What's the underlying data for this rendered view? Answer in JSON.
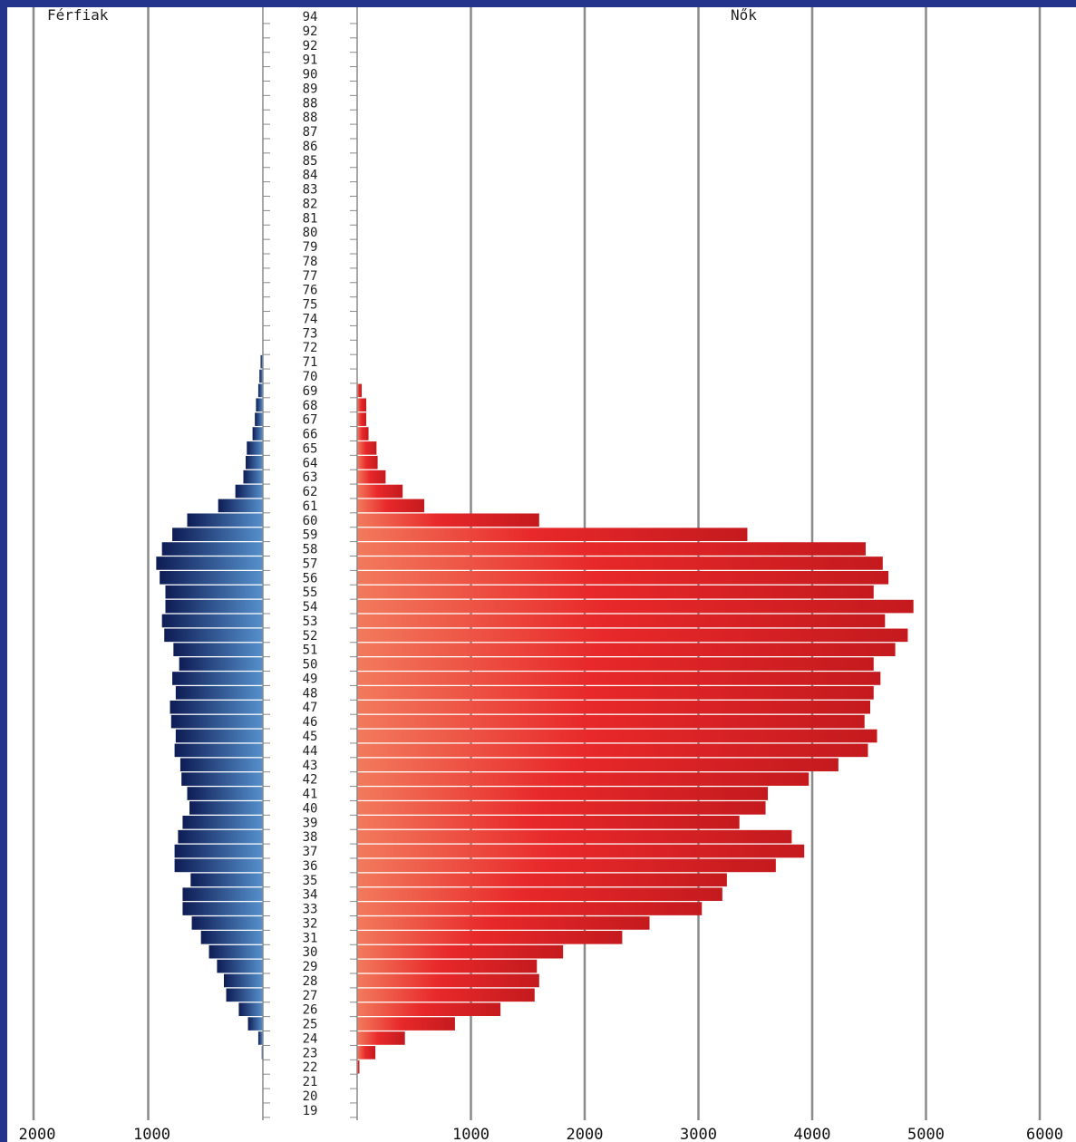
{
  "slide": {
    "background_color": "#24348c",
    "panel_color": "#ffffff"
  },
  "chart_data": {
    "type": "bar",
    "orientation": "horizontal",
    "subtype": "population-pyramid",
    "title": "",
    "panel_labels": {
      "left": "Férfiak",
      "right": "Nők"
    },
    "xlabel": "",
    "ylabel": "",
    "grid": true,
    "left_axis": {
      "xlim": [
        0,
        2000
      ],
      "ticks": [
        2000,
        1000
      ],
      "tick_labels": [
        "2000",
        "1000"
      ],
      "reversed": true
    },
    "right_axis": {
      "xlim": [
        0,
        6000
      ],
      "ticks": [
        1000,
        2000,
        3000,
        4000,
        5000,
        6000
      ],
      "tick_labels": [
        "1000",
        "2000",
        "3000",
        "4000",
        "5000",
        "6000"
      ]
    },
    "categories": [
      "94",
      "92",
      "92",
      "91",
      "90",
      "89",
      "88",
      "88",
      "87",
      "86",
      "85",
      "84",
      "83",
      "82",
      "81",
      "80",
      "79",
      "78",
      "77",
      "76",
      "75",
      "74",
      "73",
      "72",
      "71",
      "70",
      "69",
      "68",
      "67",
      "66",
      "65",
      "64",
      "63",
      "62",
      "61",
      "60",
      "59",
      "58",
      "57",
      "56",
      "55",
      "54",
      "53",
      "52",
      "51",
      "50",
      "49",
      "48",
      "47",
      "46",
      "45",
      "44",
      "43",
      "42",
      "41",
      "40",
      "39",
      "38",
      "37",
      "36",
      "35",
      "34",
      "33",
      "32",
      "31",
      "30",
      "29",
      "28",
      "27",
      "26",
      "25",
      "24",
      "23",
      "22",
      "21",
      "20",
      "19"
    ],
    "series": [
      {
        "name": "Férfiak",
        "color_dark": "#0e1c55",
        "color_light": "#5590cc",
        "values": [
          0,
          0,
          0,
          0,
          0,
          0,
          0,
          0,
          0,
          0,
          0,
          0,
          0,
          0,
          0,
          0,
          0,
          0,
          0,
          0,
          0,
          0,
          0,
          0,
          20,
          30,
          40,
          60,
          70,
          90,
          140,
          150,
          170,
          240,
          390,
          660,
          790,
          880,
          930,
          900,
          850,
          850,
          880,
          860,
          780,
          730,
          790,
          760,
          810,
          800,
          760,
          770,
          720,
          710,
          660,
          640,
          700,
          740,
          770,
          770,
          630,
          700,
          700,
          620,
          540,
          470,
          400,
          340,
          320,
          210,
          130,
          40,
          10,
          0,
          0,
          0,
          0
        ]
      },
      {
        "name": "Nők",
        "color_dark": "#c41a1e",
        "color_light": "#f27a5c",
        "values": [
          0,
          0,
          0,
          0,
          0,
          0,
          0,
          0,
          0,
          0,
          0,
          0,
          0,
          0,
          0,
          0,
          0,
          0,
          0,
          0,
          0,
          0,
          0,
          0,
          0,
          0,
          40,
          80,
          80,
          100,
          170,
          180,
          250,
          400,
          590,
          1600,
          3430,
          4470,
          4620,
          4670,
          4540,
          4890,
          4640,
          4840,
          4730,
          4540,
          4600,
          4540,
          4510,
          4460,
          4570,
          4490,
          4230,
          3970,
          3610,
          3590,
          3360,
          3820,
          3930,
          3680,
          3250,
          3210,
          3030,
          2570,
          2330,
          1810,
          1580,
          1600,
          1560,
          1260,
          860,
          420,
          160,
          20,
          0,
          0,
          0
        ]
      }
    ]
  }
}
